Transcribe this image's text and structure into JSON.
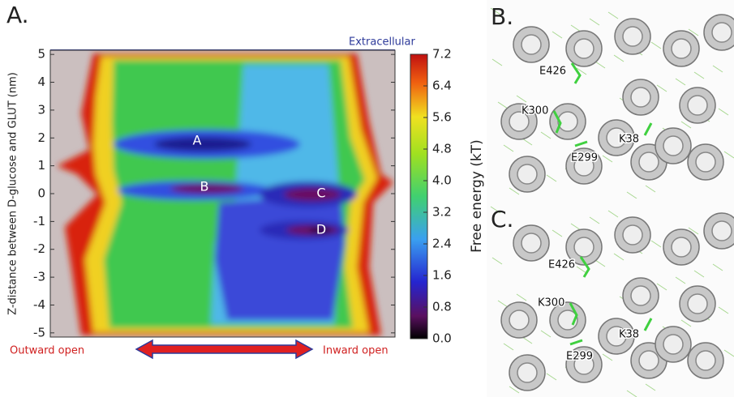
{
  "panel_a": {
    "label": "A.",
    "ylabel": "Z-distance between D-glucose and GLUT (nm)",
    "ylim": [
      -5.15,
      5.15
    ],
    "yticks": [
      5,
      4,
      3,
      2,
      1,
      {
        "value": 0,
        "label": "0"
      },
      -1,
      -2,
      -3,
      -4,
      -5
    ],
    "top_label": "Extracellular",
    "left_label": "Outward open",
    "right_label": "Inward open",
    "states": [
      "A",
      "B",
      "C",
      "D"
    ],
    "colorbar": {
      "label": "Free energy (kT)",
      "lim": [
        0,
        7.2
      ],
      "ticks": [
        {
          "value": 0,
          "label": "0.0"
        },
        0.8,
        1.6,
        2.4,
        3.2,
        {
          "value": 4,
          "label": "4.0"
        },
        4.8,
        5.6,
        6.4,
        7.2
      ]
    }
  },
  "panel_b": {
    "label": "B.",
    "residues": [
      "E426",
      "K300",
      "K38",
      "E299"
    ]
  },
  "panel_c": {
    "label": "C.",
    "residues": [
      "E426",
      "K300",
      "K38",
      "E299"
    ]
  }
}
